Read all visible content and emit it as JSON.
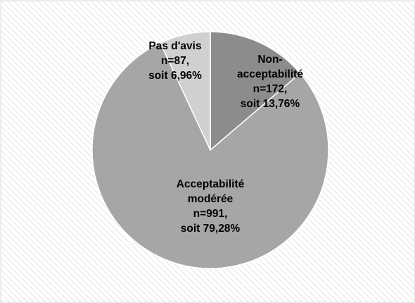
{
  "chart_data": {
    "type": "pie",
    "title": "",
    "slices": [
      {
        "label": "Non-acceptabilité",
        "n": 172,
        "percent": 13.76,
        "color": "#8c8c8c",
        "label_lines": [
          "Non-",
          "acceptabilité",
          "n=172,",
          "soit 13,76%"
        ]
      },
      {
        "label": "Acceptabilité modérée",
        "n": 991,
        "percent": 79.28,
        "color": "#a6a6a6",
        "label_lines": [
          "Acceptabilité",
          "modérée",
          "n=991,",
          "soit 79,28%"
        ]
      },
      {
        "label": "Pas d'avis",
        "n": 87,
        "percent": 6.96,
        "color": "#d0d0d0",
        "label_lines": [
          "Pas d'avis",
          "n=87,",
          "soit 6,96%"
        ]
      }
    ],
    "start_angle": "12 o'clock",
    "direction": "clockwise",
    "legend": "none",
    "colors": {
      "background_stripe": "#e3e3e3",
      "border": "#d9d9d9",
      "slice_edge": "#ffffff"
    }
  }
}
